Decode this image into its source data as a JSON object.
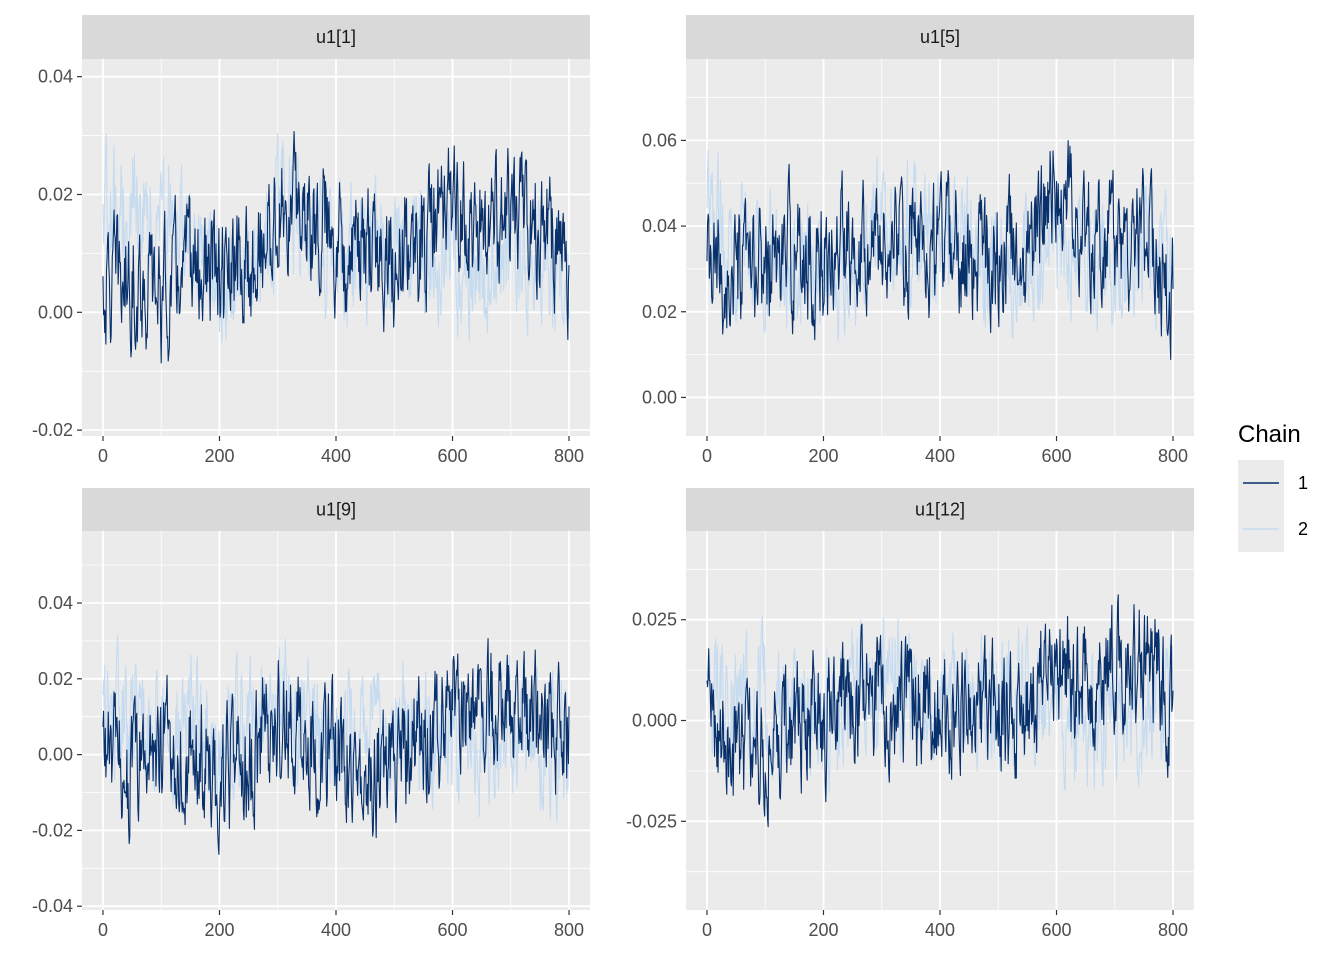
{
  "chart_data": {
    "type": "line",
    "x_range": [
      0,
      800
    ],
    "x_ticks": [
      0,
      200,
      400,
      600,
      800
    ],
    "legend": {
      "title": "Chain",
      "placement": "right"
    },
    "series": [
      {
        "name": "1",
        "color": "#08306b"
      },
      {
        "name": "2",
        "color": "#c6dbef"
      }
    ],
    "panels": [
      {
        "title": "u1[1]",
        "ylim": [
          -0.021,
          0.043
        ],
        "y_ticks": [
          -0.02,
          0.0,
          0.02,
          0.04
        ],
        "y_tick_labels": [
          "-0.02",
          "0.00",
          "0.02",
          "0.04"
        ],
        "series": [
          {
            "name": "1",
            "x": [
              0,
              50,
              100,
              150,
              200,
              250,
              300,
              350,
              400,
              450,
              500,
              550,
              600,
              650,
              700,
              750,
              800
            ],
            "y": [
              0.004,
              0.006,
              0.003,
              0.008,
              0.005,
              0.007,
              0.016,
              0.018,
              0.013,
              0.01,
              0.008,
              0.012,
              0.019,
              0.012,
              0.016,
              0.015,
              0.008
            ]
          },
          {
            "name": "2",
            "x": [
              0,
              50,
              100,
              150,
              200,
              250,
              300,
              350,
              400,
              450,
              500,
              550,
              600,
              650,
              700,
              750,
              800
            ],
            "y": [
              0.016,
              0.018,
              0.016,
              0.015,
              0.006,
              0.009,
              0.018,
              0.016,
              0.009,
              0.011,
              0.012,
              0.01,
              0.007,
              0.005,
              0.012,
              0.01,
              0.004
            ]
          }
        ]
      },
      {
        "title": "u1[5]",
        "ylim": [
          -0.009,
          0.079
        ],
        "y_ticks": [
          0.0,
          0.02,
          0.04,
          0.06
        ],
        "y_tick_labels": [
          "0.00",
          "0.02",
          "0.04",
          "0.06"
        ],
        "series": [
          {
            "name": "1",
            "x": [
              0,
              50,
              100,
              150,
              200,
              250,
              300,
              350,
              400,
              450,
              500,
              550,
              600,
              650,
              700,
              750,
              800
            ],
            "y": [
              0.028,
              0.026,
              0.03,
              0.034,
              0.03,
              0.04,
              0.036,
              0.034,
              0.036,
              0.032,
              0.034,
              0.036,
              0.048,
              0.04,
              0.036,
              0.038,
              0.022
            ]
          },
          {
            "name": "2",
            "x": [
              0,
              50,
              100,
              150,
              200,
              250,
              300,
              350,
              400,
              450,
              500,
              550,
              600,
              650,
              700,
              750,
              800
            ],
            "y": [
              0.04,
              0.036,
              0.034,
              0.032,
              0.03,
              0.032,
              0.042,
              0.04,
              0.036,
              0.034,
              0.03,
              0.032,
              0.034,
              0.032,
              0.028,
              0.036,
              0.026
            ]
          }
        ]
      },
      {
        "title": "u1[9]",
        "ylim": [
          -0.041,
          0.059
        ],
        "y_ticks": [
          -0.04,
          -0.02,
          0.0,
          0.02,
          0.04
        ],
        "y_tick_labels": [
          "-0.04",
          "-0.02",
          "0.00",
          "0.02",
          "0.04"
        ],
        "series": [
          {
            "name": "1",
            "x": [
              0,
              50,
              100,
              150,
              200,
              250,
              300,
              350,
              400,
              450,
              500,
              550,
              600,
              650,
              700,
              750,
              800
            ],
            "y": [
              0.002,
              -0.006,
              0.004,
              0.0,
              -0.008,
              -0.004,
              0.01,
              0.004,
              0.0,
              -0.002,
              -0.004,
              0.004,
              0.014,
              0.012,
              0.01,
              0.008,
              0.004
            ]
          },
          {
            "name": "2",
            "x": [
              0,
              50,
              100,
              150,
              200,
              250,
              300,
              350,
              400,
              450,
              500,
              550,
              600,
              650,
              700,
              750,
              800
            ],
            "y": [
              0.01,
              0.008,
              0.006,
              0.008,
              0.004,
              0.01,
              0.012,
              0.01,
              0.006,
              0.004,
              0.006,
              0.008,
              0.006,
              0.004,
              0.008,
              0.006,
              0.002
            ]
          }
        ]
      },
      {
        "title": "u1[12]",
        "ylim": [
          -0.047,
          0.047
        ],
        "y_ticks": [
          -0.025,
          0.0,
          0.025
        ],
        "y_tick_labels": [
          "-0.025",
          "0.000",
          "0.025"
        ],
        "series": [
          {
            "name": "1",
            "x": [
              0,
              50,
              100,
              150,
              200,
              250,
              300,
              350,
              400,
              450,
              500,
              550,
              600,
              650,
              700,
              750,
              800
            ],
            "y": [
              0.004,
              -0.008,
              -0.006,
              0.0,
              -0.002,
              0.004,
              0.006,
              0.002,
              0.0,
              0.004,
              0.002,
              0.006,
              0.012,
              0.01,
              0.012,
              0.016,
              0.004
            ]
          },
          {
            "name": "2",
            "x": [
              0,
              50,
              100,
              150,
              200,
              250,
              300,
              350,
              400,
              450,
              500,
              550,
              600,
              650,
              700,
              750,
              800
            ],
            "y": [
              0.006,
              0.004,
              0.006,
              0.002,
              0.0,
              0.004,
              0.01,
              0.008,
              0.004,
              0.002,
              0.004,
              0.006,
              0.004,
              0.0,
              0.004,
              0.002,
              0.0
            ]
          }
        ]
      }
    ]
  }
}
